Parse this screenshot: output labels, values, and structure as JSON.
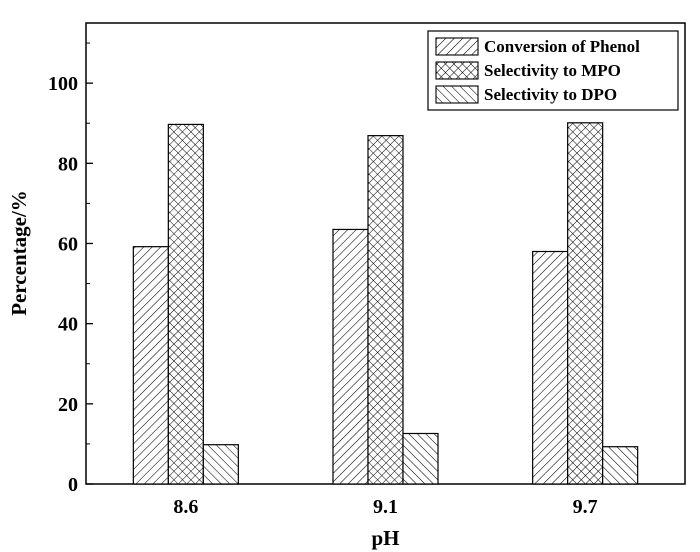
{
  "chart_data": {
    "type": "bar",
    "title": "",
    "xlabel": "pH",
    "ylabel": "Percentage/%",
    "categories": [
      "8.6",
      "9.1",
      "9.7"
    ],
    "ylim": [
      0,
      115
    ],
    "yticks": [
      0,
      20,
      40,
      60,
      80,
      100
    ],
    "grid": false,
    "legend_position": "top-right",
    "series": [
      {
        "name": "Conversion of Phenol",
        "values": [
          59.2,
          63.5,
          58.0
        ],
        "pattern": "diagonal-forward"
      },
      {
        "name": "Selectivity to MPO",
        "values": [
          89.7,
          86.9,
          90.1
        ],
        "pattern": "crosshatch"
      },
      {
        "name": "Selectivity to DPO",
        "values": [
          9.8,
          12.6,
          9.3
        ],
        "pattern": "diagonal-back"
      }
    ],
    "colors": {
      "bar_fill": "#ffffff",
      "stroke": "#000000"
    }
  }
}
